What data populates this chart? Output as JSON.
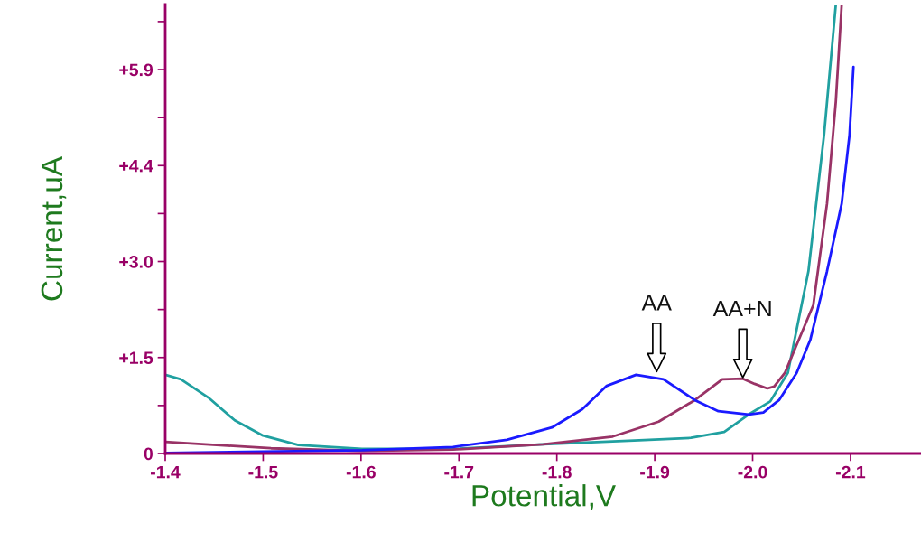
{
  "chart_data": {
    "type": "line",
    "xlabel": "Potential,V",
    "ylabel": "Current,uA",
    "xlim": [
      -1.4,
      -2.172
    ],
    "ylim": [
      0,
      6.9
    ],
    "xticks": [
      -1.4,
      -1.5,
      -1.6,
      -1.7,
      -1.8,
      -1.9,
      {
        "value": -2.0,
        "label": "-2.0"
      },
      -2.1
    ],
    "yticks": [
      0,
      {
        "value": 0.7375,
        "label": null
      },
      {
        "value": 1.475,
        "label": "+1.5"
      },
      {
        "value": 2.2125,
        "label": null
      },
      {
        "value": 2.95,
        "label": "+3.0"
      },
      {
        "value": 3.6875,
        "label": null
      },
      {
        "value": 4.425,
        "label": "+4.4"
      },
      {
        "value": 5.1625,
        "label": null
      },
      {
        "value": 5.9,
        "label": "+5.9"
      },
      {
        "value": 6.6375,
        "label": null
      }
    ],
    "grid": false,
    "legend": false,
    "marker": "none",
    "line_style": "solid",
    "series": [
      {
        "color": "#20a0a0",
        "x": [
          -1.4,
          -1.416,
          -1.444,
          -1.471,
          -1.499,
          -1.536,
          -1.601,
          -1.694,
          -1.786,
          -1.879,
          -1.937,
          -1.971,
          -1.996,
          -2.018,
          -2.036,
          -2.057,
          -2.073,
          -2.085
        ],
        "values": [
          1.21,
          1.14,
          0.86,
          0.51,
          0.28,
          0.13,
          0.07,
          0.07,
          0.14,
          0.2,
          0.24,
          0.33,
          0.6,
          0.8,
          1.24,
          2.8,
          4.9,
          6.9
        ]
      },
      {
        "color": "#993366",
        "x": [
          -1.4,
          -1.508,
          -1.601,
          -1.694,
          -1.786,
          -1.857,
          -1.904,
          -1.941,
          -1.969,
          -1.99,
          -2.002,
          -2.015,
          -2.022,
          -2.033,
          -2.062,
          -2.076,
          -2.085,
          -2.091
        ],
        "values": [
          0.18,
          0.08,
          0.04,
          0.06,
          0.14,
          0.26,
          0.49,
          0.82,
          1.14,
          1.15,
          1.07,
          1.0,
          1.03,
          1.24,
          2.28,
          3.84,
          5.41,
          6.9
        ]
      },
      {
        "color": "#1a1aff",
        "x": [
          -1.4,
          -1.601,
          -1.694,
          -1.749,
          -1.795,
          -1.826,
          -1.851,
          -1.881,
          -1.909,
          -1.941,
          -1.965,
          -1.996,
          -2.011,
          -2.027,
          -2.045,
          -2.059,
          -2.076,
          -2.091,
          -2.099,
          -2.103
        ],
        "values": [
          0.01,
          0.05,
          0.1,
          0.21,
          0.4,
          0.68,
          1.04,
          1.21,
          1.14,
          0.82,
          0.65,
          0.6,
          0.63,
          0.82,
          1.24,
          1.75,
          2.8,
          3.84,
          4.9,
          5.94
        ]
      }
    ],
    "annotations": [
      {
        "text": "AA",
        "x": -1.902,
        "y": 1.24
      },
      {
        "text": "AA+N",
        "x": -1.99,
        "y": 1.15
      }
    ]
  }
}
